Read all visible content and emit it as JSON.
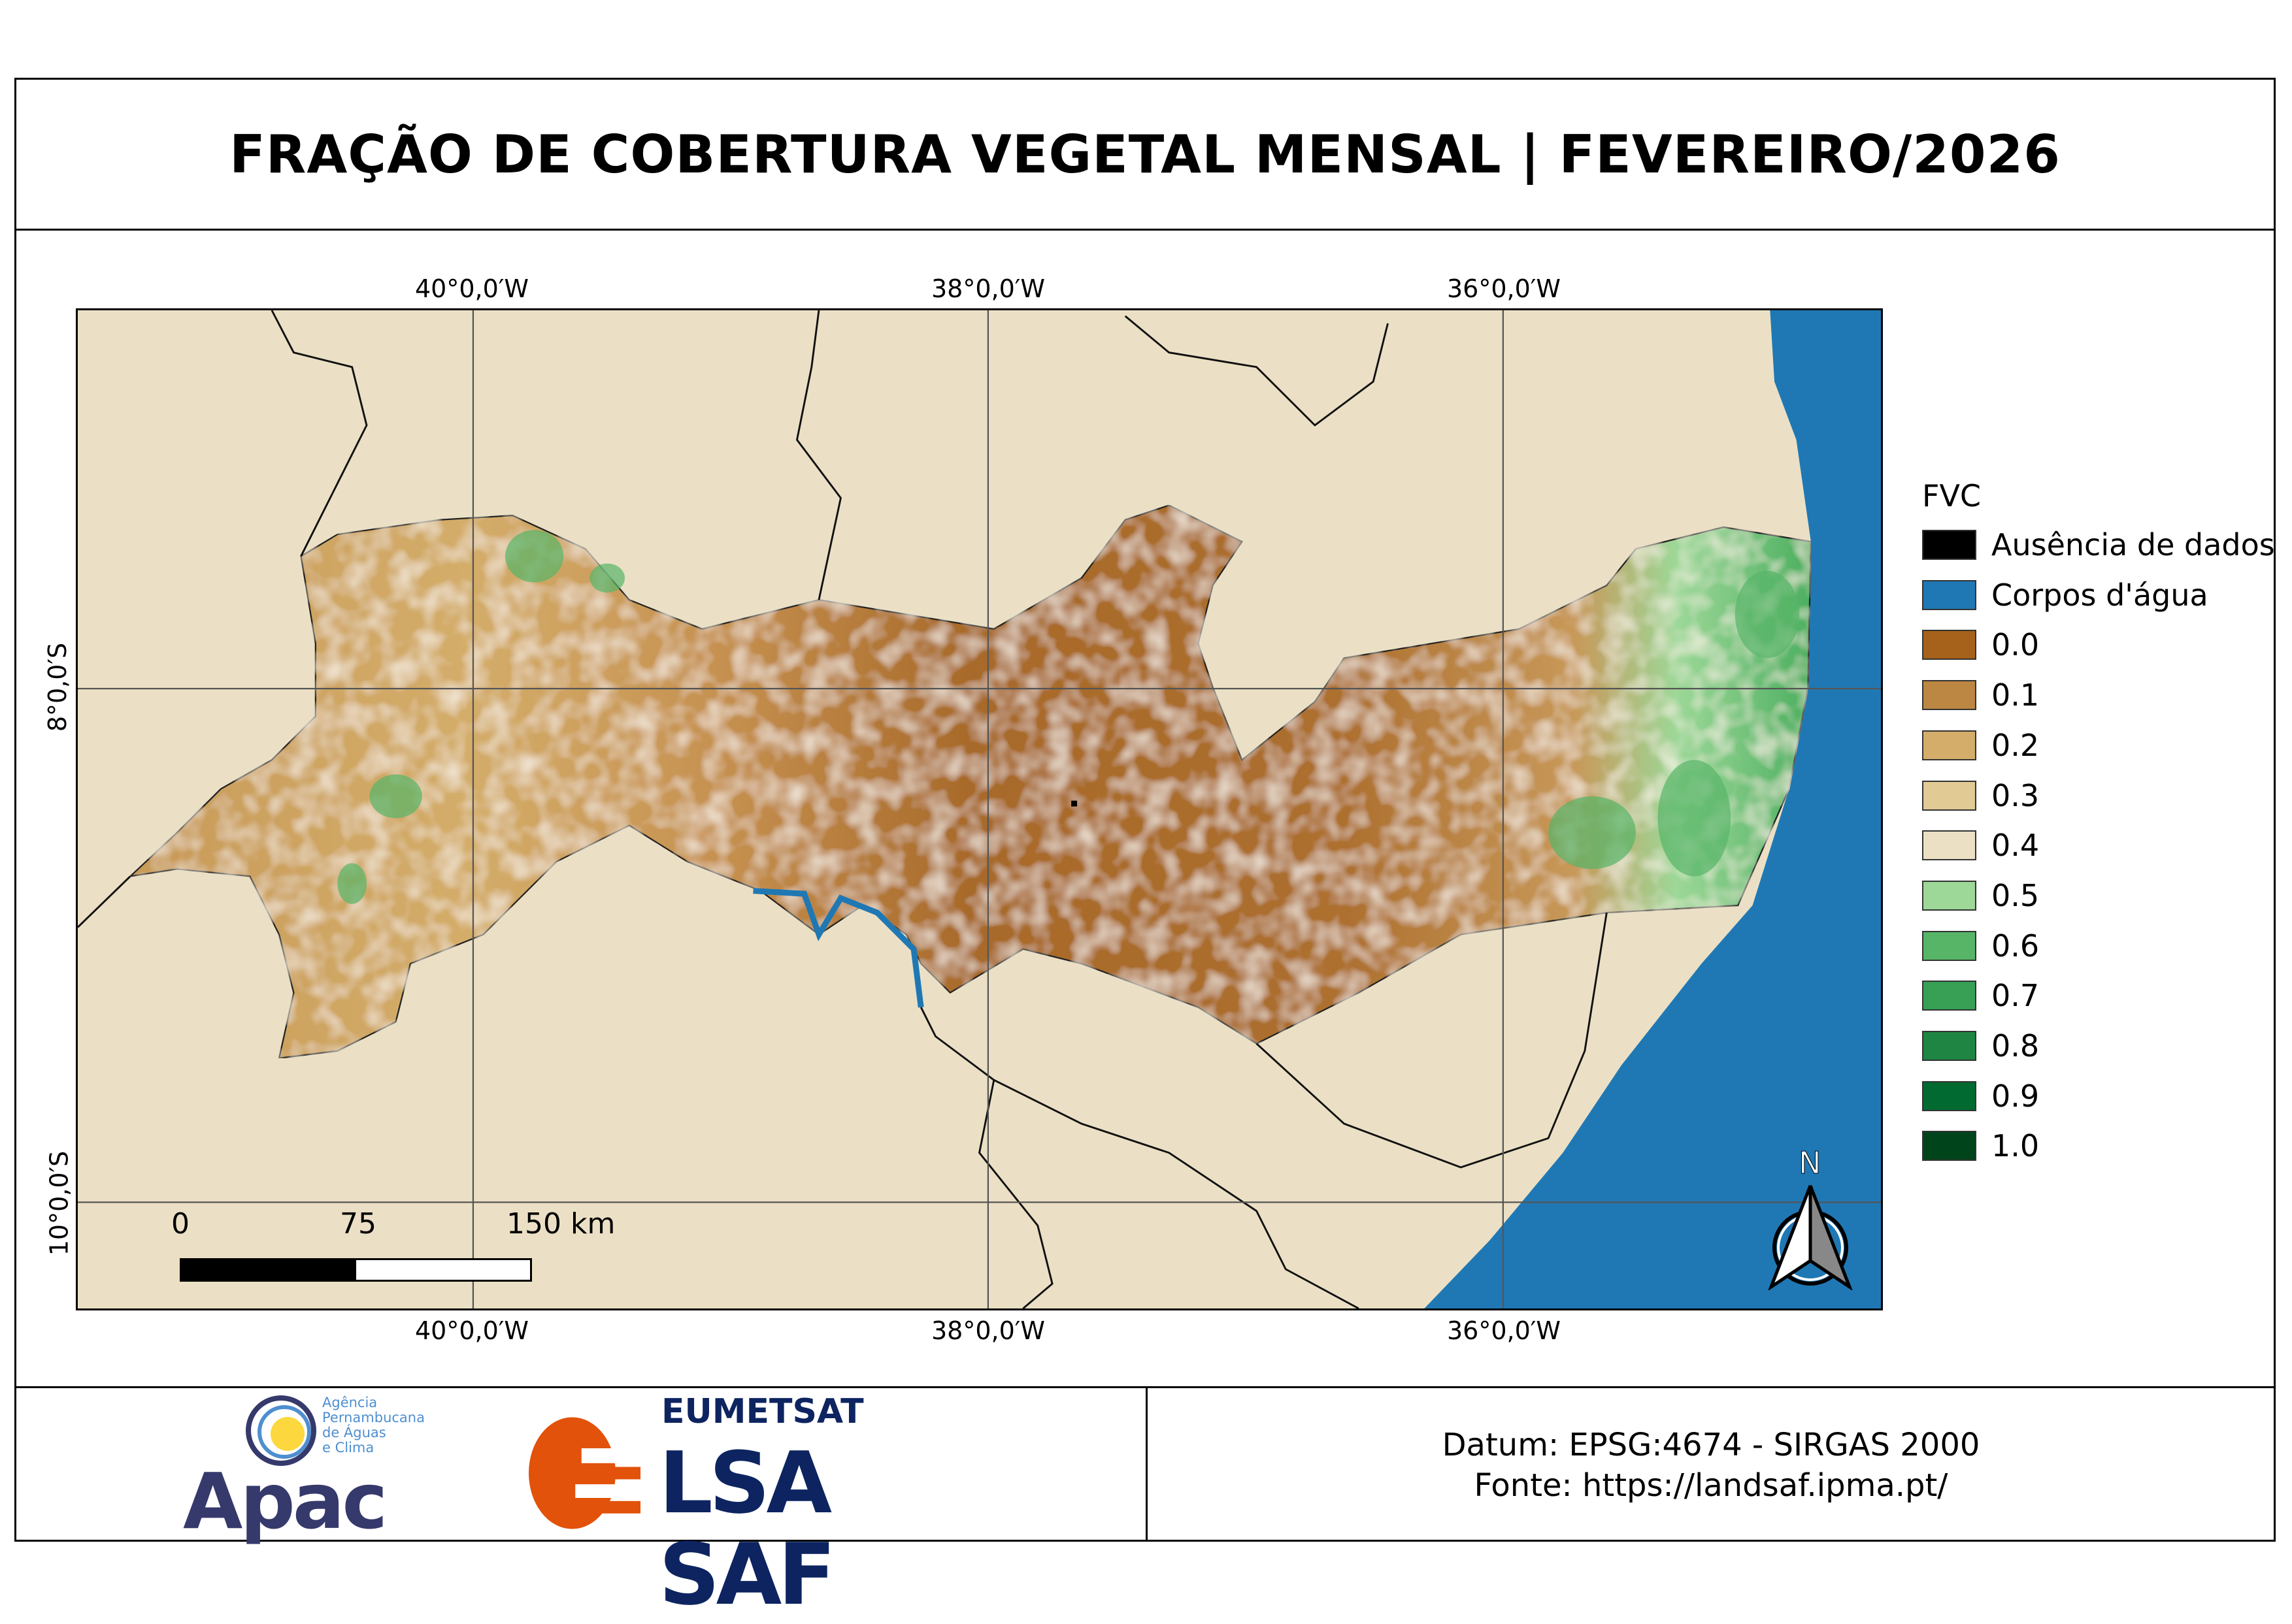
{
  "title": "FRAÇÃO DE COBERTURA VEGETAL MENSAL | FEVEREIRO/2026",
  "grid_labels": {
    "top": [
      "40°0,0′W",
      "38°0,0′W",
      "36°0,0′W"
    ],
    "bottom": [
      "40°0,0′W",
      "38°0,0′W",
      "36°0,0′W"
    ],
    "left": [
      "8°0,0′S",
      "10°0,0′S"
    ]
  },
  "legend": {
    "title": "FVC",
    "items": [
      {
        "label": "Ausência de dados",
        "color": "#000000"
      },
      {
        "label": "Corpos d'água",
        "color": "#1f78b4"
      },
      {
        "label": "0.0",
        "color": "#a6611a"
      },
      {
        "label": "0.1",
        "color": "#bc8743"
      },
      {
        "label": "0.2",
        "color": "#d4ad6a"
      },
      {
        "label": "0.3",
        "color": "#e2ca94"
      },
      {
        "label": "0.4",
        "color": "#ece0c4"
      },
      {
        "label": "0.5",
        "color": "#9dd898"
      },
      {
        "label": "0.6",
        "color": "#57b568"
      },
      {
        "label": "0.7",
        "color": "#37a055"
      },
      {
        "label": "0.8",
        "color": "#1e8642"
      },
      {
        "label": "0.9",
        "color": "#006a30"
      },
      {
        "label": "1.0",
        "color": "#00441b"
      }
    ]
  },
  "background_color": "#ebe0c5",
  "scale_bar": {
    "labels": [
      "0",
      "75",
      "150 km"
    ]
  },
  "north_arrow": {
    "label": "N"
  },
  "info": {
    "datum": "Datum: EPSG:4674 - SIRGAS 2000",
    "source": "Fonte: https://landsaf.ipma.pt/"
  },
  "logos": {
    "apac": {
      "name": "Apac",
      "subtitle": [
        "Agência",
        "Pernambucana",
        "de Águas",
        "e Clima"
      ]
    },
    "lsasaf": {
      "org": "EUMETSAT",
      "name": "LSA SAF"
    }
  }
}
